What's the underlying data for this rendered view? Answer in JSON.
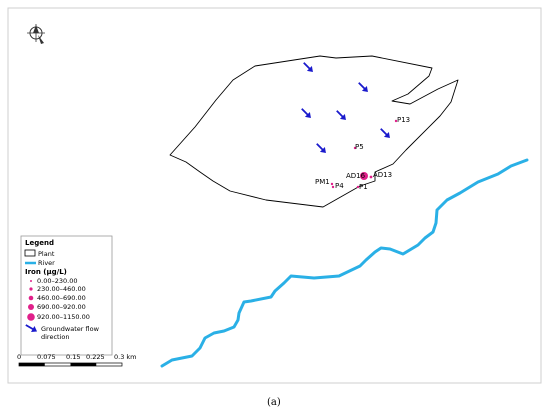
{
  "map": {
    "site_labels": [
      "P13",
      "P5",
      "AD16",
      "AD13",
      "PM1",
      "P4",
      "P1"
    ],
    "legend": {
      "title": "Legend",
      "plant_label": "Plant",
      "river_label": "River",
      "iron_title": "Iron (µg/L)",
      "iron_classes": [
        "0.00–230.00",
        "230.00–460.00",
        "460.00–690.00",
        "690.00–920.00",
        "920.00–1150.00"
      ],
      "flow_label_line1": "Groundwater flow",
      "flow_label_line2": "direction"
    },
    "scale_bar": {
      "ticks": [
        "0",
        "0.075",
        "0.15",
        "0.225",
        "0.3 km"
      ]
    },
    "colors": {
      "river": "#2ab0e6",
      "arrow": "#1a1acc",
      "marker": "#e0208a",
      "boundary": "#000000"
    },
    "icons": [
      "compass-icon",
      "flow-arrow-icon"
    ]
  },
  "caption": "(a)"
}
